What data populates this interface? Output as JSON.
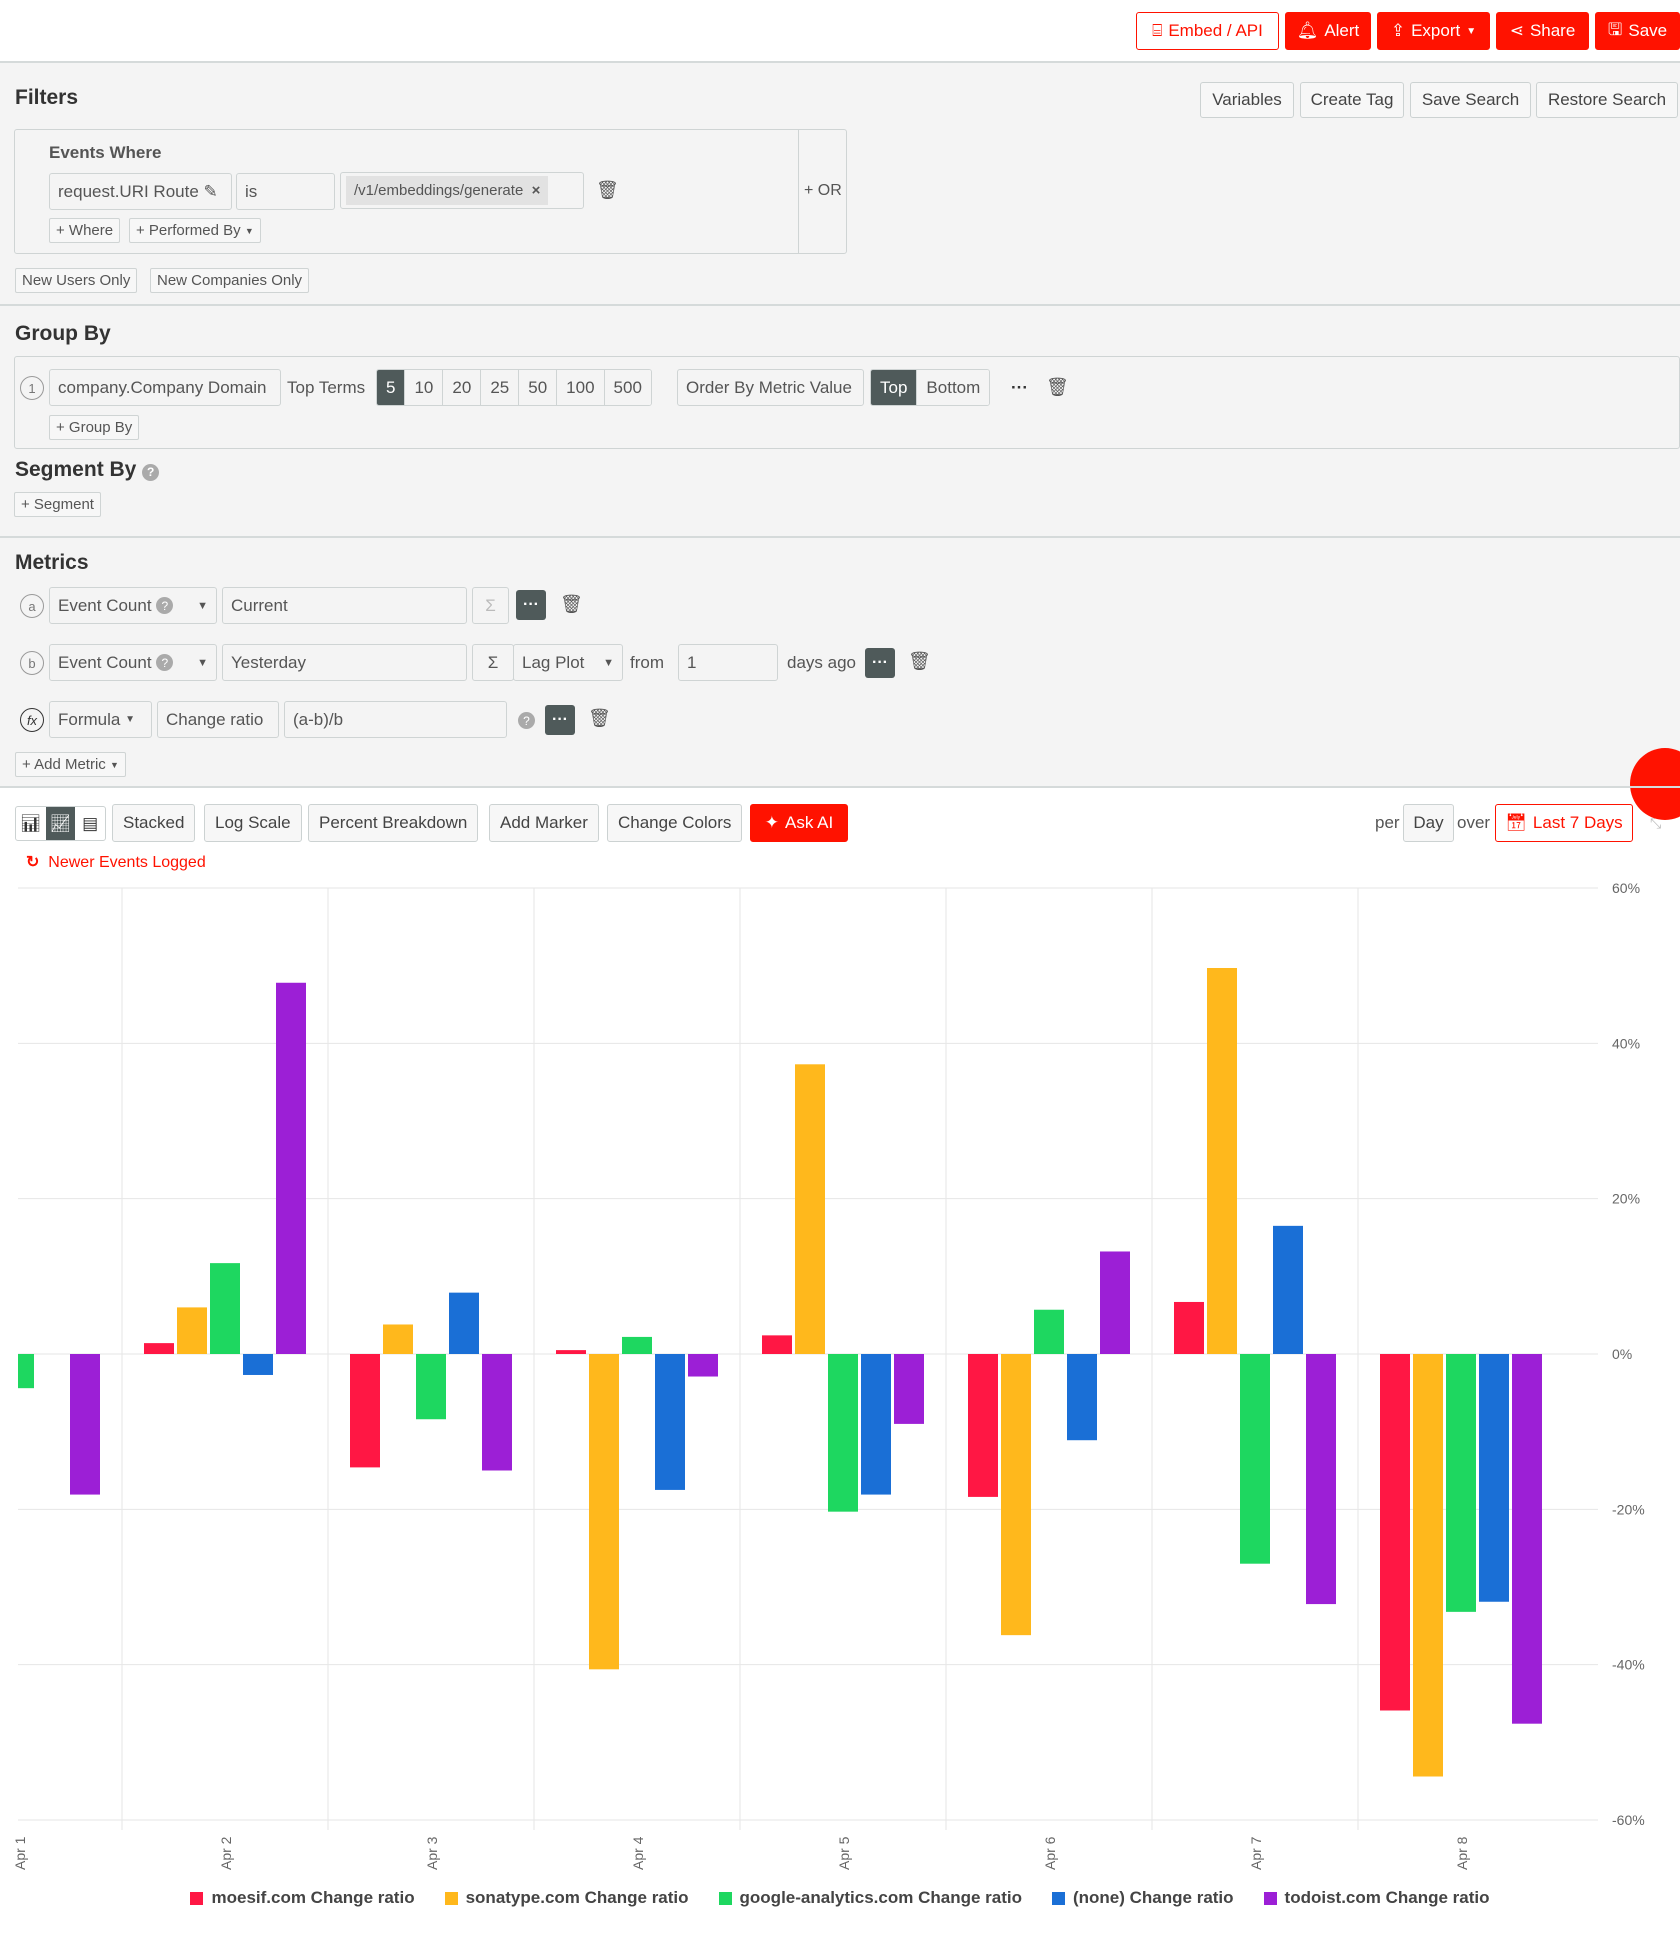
{
  "header": {
    "buttons": [
      {
        "label": "Embed / API",
        "icon": "embed-icon"
      },
      {
        "label": "Alert",
        "icon": "bell-icon"
      },
      {
        "label": "Export",
        "icon": "export-icon"
      },
      {
        "label": "Share",
        "icon": "share-icon"
      },
      {
        "label": "Save",
        "icon": "save-icon"
      }
    ]
  },
  "filters": {
    "title": "Filters",
    "actions": [
      "Variables",
      "Create Tag",
      "Save Search",
      "Restore Search"
    ],
    "events_where": "Events Where",
    "field": "request.URI Route",
    "operator": "is",
    "value": "/v1/embeddings/generate",
    "add_where": "+ Where",
    "performed_by": "+ Performed By",
    "or": "+ OR",
    "new_users": "New Users Only",
    "new_companies": "New Companies Only"
  },
  "group_by": {
    "title": "Group By",
    "index": "1",
    "field": "company.Company Domain",
    "top_terms": "Top Terms",
    "terms": [
      "5",
      "10",
      "20",
      "25",
      "50",
      "100",
      "500"
    ],
    "selected_term": "5",
    "order": "Order By Metric Value",
    "top": "Top",
    "bottom": "Bottom",
    "add": "+ Group By"
  },
  "segment_by": {
    "title": "Segment By",
    "add": "+ Segment"
  },
  "metrics": {
    "title": "Metrics",
    "rows": [
      {
        "letter": "a",
        "metric": "Event Count",
        "name": "Current"
      },
      {
        "letter": "b",
        "metric": "Event Count",
        "name": "Yesterday",
        "plot": "Lag Plot",
        "from": "from",
        "days": "1",
        "days_ago": "days ago"
      }
    ],
    "formula": {
      "letter": "fx",
      "type": "Formula",
      "name": "Change ratio",
      "expr": "(a-b)/b"
    },
    "add": "+ Add Metric"
  },
  "toolbar": {
    "buttons": [
      "Stacked",
      "Log Scale",
      "Percent Breakdown",
      "Add Marker",
      "Change Colors"
    ],
    "ask_ai": "Ask AI",
    "per": "per",
    "interval": "Day",
    "over": "over",
    "range": "Last 7 Days",
    "newer_events": "Newer Events Logged"
  },
  "chart_data": {
    "type": "bar",
    "categories": [
      "Apr 1",
      "Apr 2",
      "Apr 3",
      "Apr 4",
      "Apr 5",
      "Apr 6",
      "Apr 7",
      "Apr 8"
    ],
    "ylim": [
      -60,
      60
    ],
    "yticks": [
      "60%",
      "40%",
      "20%",
      "0%",
      "-20%",
      "-40%",
      "-60%"
    ],
    "ytick_values": [
      60,
      40,
      20,
      0,
      -20,
      -40,
      -60
    ],
    "grid": true,
    "legend": "bottom",
    "series": [
      {
        "name": "moesif.com Change ratio",
        "color": "#ff1744",
        "values": [
          null,
          1.4,
          -14.6,
          0.5,
          2.4,
          -18.4,
          6.7,
          -45.9
        ]
      },
      {
        "name": "sonatype.com Change ratio",
        "color": "#ffb81c",
        "values": [
          null,
          6,
          3.8,
          -40.6,
          37.3,
          -36.2,
          49.7,
          -54.4
        ]
      },
      {
        "name": "google-analytics.com Change ratio",
        "color": "#1ed760",
        "values": [
          -4.4,
          11.7,
          -8.4,
          2.2,
          -20.3,
          5.7,
          -27,
          -33.2
        ]
      },
      {
        "name": "(none) Change ratio",
        "color": "#1a6fd6",
        "values": [
          null,
          -2.7,
          7.9,
          -17.5,
          -18.1,
          -11.1,
          16.5,
          -31.9
        ]
      },
      {
        "name": "todoist.com Change ratio",
        "color": "#9c1fd6",
        "values": [
          -18.1,
          47.8,
          -15,
          -2.9,
          -9,
          13.2,
          -32.2,
          -47.6
        ]
      }
    ]
  }
}
